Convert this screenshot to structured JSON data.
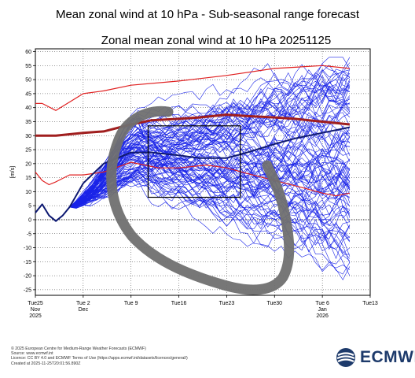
{
  "header": {
    "title": "Mean zonal wind at 10 hPa - Sub-seasonal range forecast"
  },
  "chart_data": {
    "type": "line",
    "title": "Zonal mean zonal wind at 10 hPa 20251125",
    "ylabel": "[m/s]",
    "xlabel": "",
    "ylim": [
      -27,
      61
    ],
    "yticks": [
      -25,
      -20,
      -15,
      -10,
      -5,
      0,
      5,
      10,
      15,
      20,
      25,
      30,
      35,
      40,
      45,
      50,
      55,
      60
    ],
    "xlim": [
      0,
      49
    ],
    "x_unit": "days since 2025-11-25",
    "xticks": [
      {
        "day": 0,
        "lines": [
          "Tue25",
          "Nov",
          "2025"
        ]
      },
      {
        "day": 7,
        "lines": [
          "Tue 2",
          "Dec",
          ""
        ]
      },
      {
        "day": 14,
        "lines": [
          "Tue 9",
          "",
          ""
        ]
      },
      {
        "day": 21,
        "lines": [
          "Tue16",
          "",
          ""
        ]
      },
      {
        "day": 28,
        "lines": [
          "Tue23",
          "",
          ""
        ]
      },
      {
        "day": 35,
        "lines": [
          "Tue30",
          "",
          ""
        ]
      },
      {
        "day": 42,
        "lines": [
          "Tue 6",
          "Jan",
          "2026"
        ]
      },
      {
        "day": 49,
        "lines": [
          "Tue13",
          "",
          ""
        ]
      }
    ],
    "grid": true,
    "series": [
      {
        "name": "",
        "role": "analysis",
        "color": "#0a1670",
        "x": [
          0,
          1,
          2,
          3,
          4,
          5
        ],
        "values": [
          2.5,
          5.5,
          1.5,
          -0.5,
          1.5,
          4.5
        ]
      },
      {
        "name": "",
        "role": "climatology-mean",
        "color": "#a01e1e",
        "x": [
          0,
          3,
          7,
          10,
          14,
          17,
          21,
          24,
          28,
          31,
          35,
          38,
          42,
          46
        ],
        "values": [
          30,
          30,
          31,
          31.5,
          34,
          35.5,
          36,
          36.5,
          37.5,
          37,
          36.5,
          36,
          35,
          34
        ]
      },
      {
        "name": "",
        "role": "climatology-upper",
        "color": "#e02020",
        "x": [
          0,
          1,
          3,
          7,
          10,
          14,
          21,
          28,
          35,
          42,
          46
        ],
        "values": [
          41.5,
          41.5,
          39,
          45,
          46,
          48,
          49.5,
          51.5,
          54,
          55,
          54
        ]
      },
      {
        "name": "",
        "role": "climatology-lower",
        "color": "#e02020",
        "x": [
          0,
          1,
          2,
          3,
          5,
          7,
          10,
          14,
          18,
          21,
          25,
          28,
          31,
          35,
          39,
          42,
          44,
          46
        ],
        "values": [
          17,
          14,
          12.5,
          13.5,
          16,
          16,
          17,
          20.5,
          18.5,
          18.5,
          19.5,
          18.5,
          16.5,
          14,
          11.5,
          9.5,
          8.5,
          9.5
        ]
      },
      {
        "name": "",
        "role": "ensemble-mean",
        "color": "#101a70",
        "x": [
          5,
          7,
          10,
          14,
          17,
          21,
          24,
          28,
          31,
          35,
          38,
          42,
          46
        ],
        "values": [
          4.5,
          13,
          20,
          24,
          24,
          23,
          22,
          22,
          24,
          27,
          29,
          31,
          33
        ]
      }
    ],
    "ensemble": {
      "color": "#1a24e8",
      "members": 100,
      "start": {
        "day": 5,
        "value": 4.5
      },
      "end_day": 46,
      "spread_max": [
        -25,
        58
      ]
    },
    "annotations": [
      {
        "type": "rectangle",
        "color": "#000000",
        "x_range": [
          16.5,
          30
        ],
        "y_range": [
          8,
          33.5
        ]
      },
      {
        "type": "freehand-loop",
        "color": "#707070"
      }
    ]
  },
  "footer": {
    "credits": [
      "© 2025 European Centre for Medium-Range Weather Forecasts (ECMWF)",
      "Source: www.ecmwf.int",
      "Licence: CC BY 4.0 and ECMWF Terms of Use (https://apps.ecmwf.int/datasets/licences/general/)",
      "Created at 2025-11-25T20:01:56.890Z"
    ],
    "logo_text": "ECMWF"
  }
}
